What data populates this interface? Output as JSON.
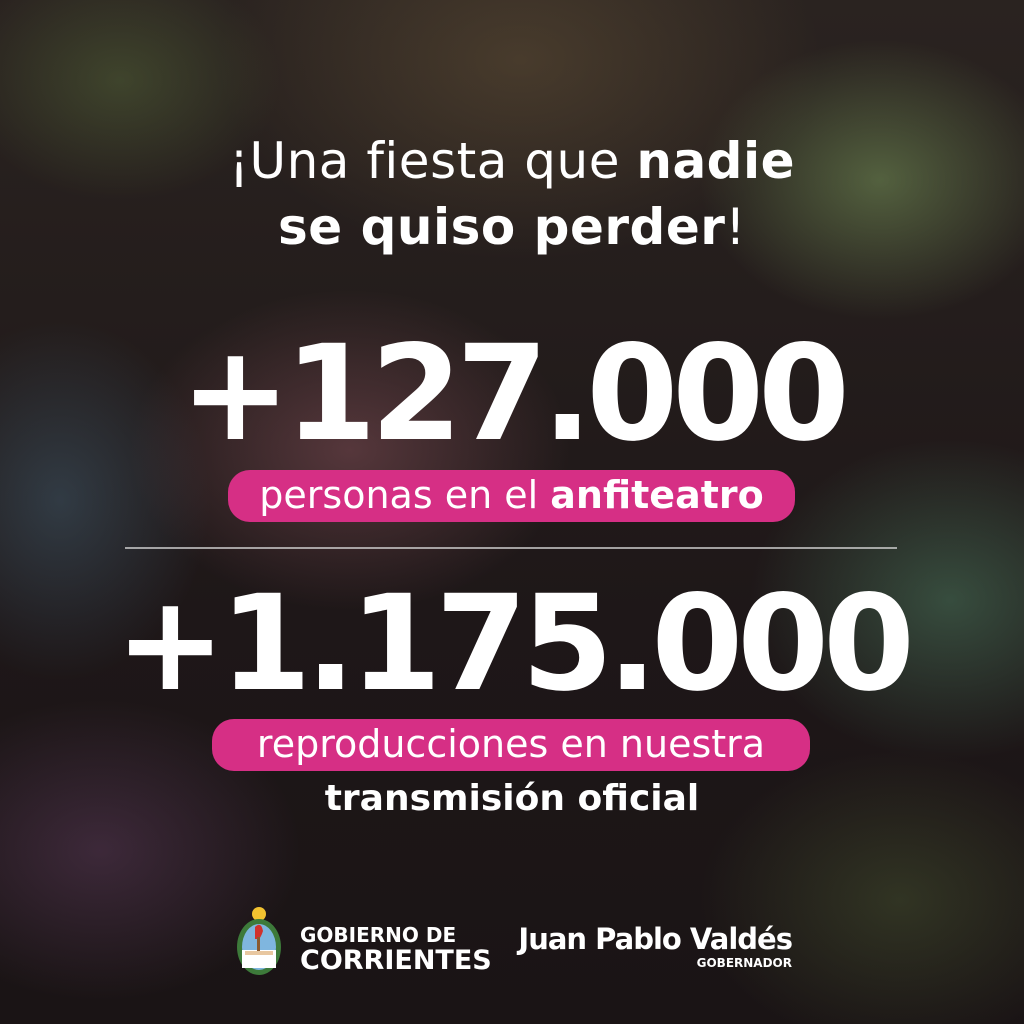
{
  "headline": {
    "part1": "¡Una fiesta que ",
    "bold1": "nadie",
    "bold2": "se quiso perder",
    "end": "!"
  },
  "stat1": {
    "value": "+127.000",
    "label_regular": "personas en el ",
    "label_bold": "anfiteatro"
  },
  "stat2": {
    "value": "+1.175.000",
    "label_pill": "reproducciones en nuestra",
    "label_below": "transmisión oficial"
  },
  "footer": {
    "gov_line1": "GOBIERNO DE",
    "gov_line2": "CORRIENTES",
    "governor_name": "Juan Pablo Valdés",
    "governor_role": "GOBERNADOR"
  },
  "colors": {
    "accent": "#d62f85",
    "text": "#ffffff"
  }
}
